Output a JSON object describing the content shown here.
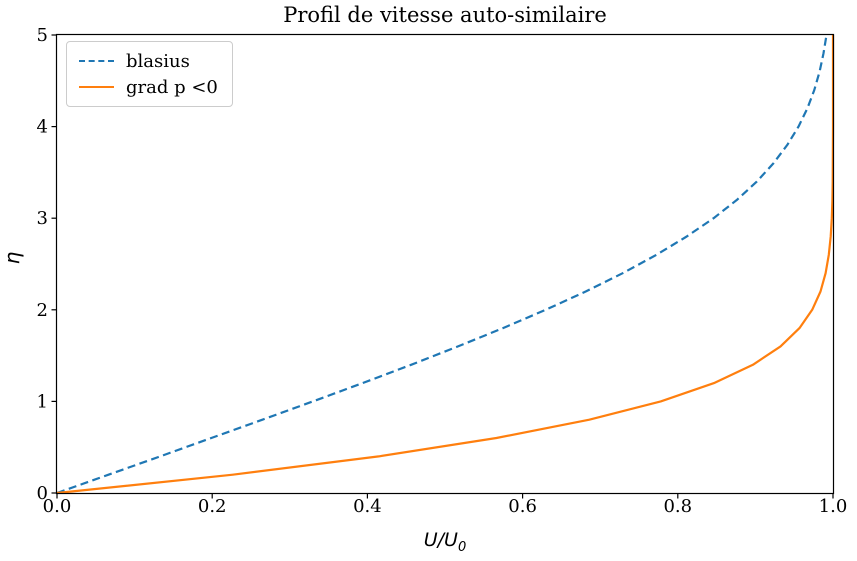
{
  "chart_data": {
    "type": "line",
    "title": "Profil de vitesse auto-similaire",
    "xlabel_main": "U/U",
    "xlabel_sub": "0",
    "ylabel": "η",
    "xlim": [
      0.0,
      1.0
    ],
    "ylim": [
      0,
      5
    ],
    "xticks": [
      0.0,
      0.2,
      0.4,
      0.6,
      0.8,
      1.0
    ],
    "xtick_labels": [
      "0.0",
      "0.2",
      "0.4",
      "0.6",
      "0.8",
      "1.0"
    ],
    "yticks": [
      0,
      1,
      2,
      3,
      4,
      5
    ],
    "ytick_labels": [
      "0",
      "1",
      "2",
      "3",
      "4",
      "5"
    ],
    "grid": false,
    "legend_position": "upper left",
    "axis_color": "#000000",
    "background_color": "#ffffff",
    "series": [
      {
        "name": "blasius",
        "color": "#1f77b4",
        "line_style": "dashed",
        "x_meaning": "U/U0",
        "y_meaning": "eta",
        "points": [
          [
            0.0,
            0.0
          ],
          [
            0.0664,
            0.2
          ],
          [
            0.1328,
            0.4
          ],
          [
            0.1989,
            0.6
          ],
          [
            0.2647,
            0.8
          ],
          [
            0.3298,
            1.0
          ],
          [
            0.3938,
            1.2
          ],
          [
            0.4563,
            1.4
          ],
          [
            0.5168,
            1.6
          ],
          [
            0.5748,
            1.8
          ],
          [
            0.6298,
            2.0
          ],
          [
            0.6813,
            2.2
          ],
          [
            0.729,
            2.4
          ],
          [
            0.7725,
            2.6
          ],
          [
            0.8115,
            2.8
          ],
          [
            0.8461,
            3.0
          ],
          [
            0.8761,
            3.2
          ],
          [
            0.9018,
            3.4
          ],
          [
            0.9233,
            3.6
          ],
          [
            0.9411,
            3.8
          ],
          [
            0.9555,
            4.0
          ],
          [
            0.967,
            4.2
          ],
          [
            0.9759,
            4.4
          ],
          [
            0.9827,
            4.6
          ],
          [
            0.9878,
            4.8
          ],
          [
            0.9916,
            5.0
          ]
        ]
      },
      {
        "name": "grad p <0",
        "color": "#ff7f0e",
        "line_style": "solid",
        "x_meaning": "U/U0",
        "y_meaning": "eta",
        "points": [
          [
            0.0,
            0.0
          ],
          [
            0.2266,
            0.2
          ],
          [
            0.4145,
            0.4
          ],
          [
            0.5663,
            0.6
          ],
          [
            0.6859,
            0.8
          ],
          [
            0.7779,
            1.0
          ],
          [
            0.8467,
            1.2
          ],
          [
            0.8968,
            1.4
          ],
          [
            0.9323,
            1.6
          ],
          [
            0.9568,
            1.8
          ],
          [
            0.9732,
            2.0
          ],
          [
            0.9839,
            2.2
          ],
          [
            0.9905,
            2.4
          ],
          [
            0.9946,
            2.6
          ],
          [
            0.997,
            2.8
          ],
          [
            0.9984,
            3.0
          ],
          [
            0.9992,
            3.2
          ],
          [
            0.9996,
            3.4
          ],
          [
            0.9998,
            3.6
          ],
          [
            0.9999,
            3.8
          ],
          [
            1.0,
            4.0
          ],
          [
            1.0,
            4.2
          ],
          [
            1.0,
            4.4
          ],
          [
            1.0,
            4.6
          ],
          [
            1.0,
            4.8
          ],
          [
            1.0,
            5.0
          ]
        ]
      }
    ]
  }
}
